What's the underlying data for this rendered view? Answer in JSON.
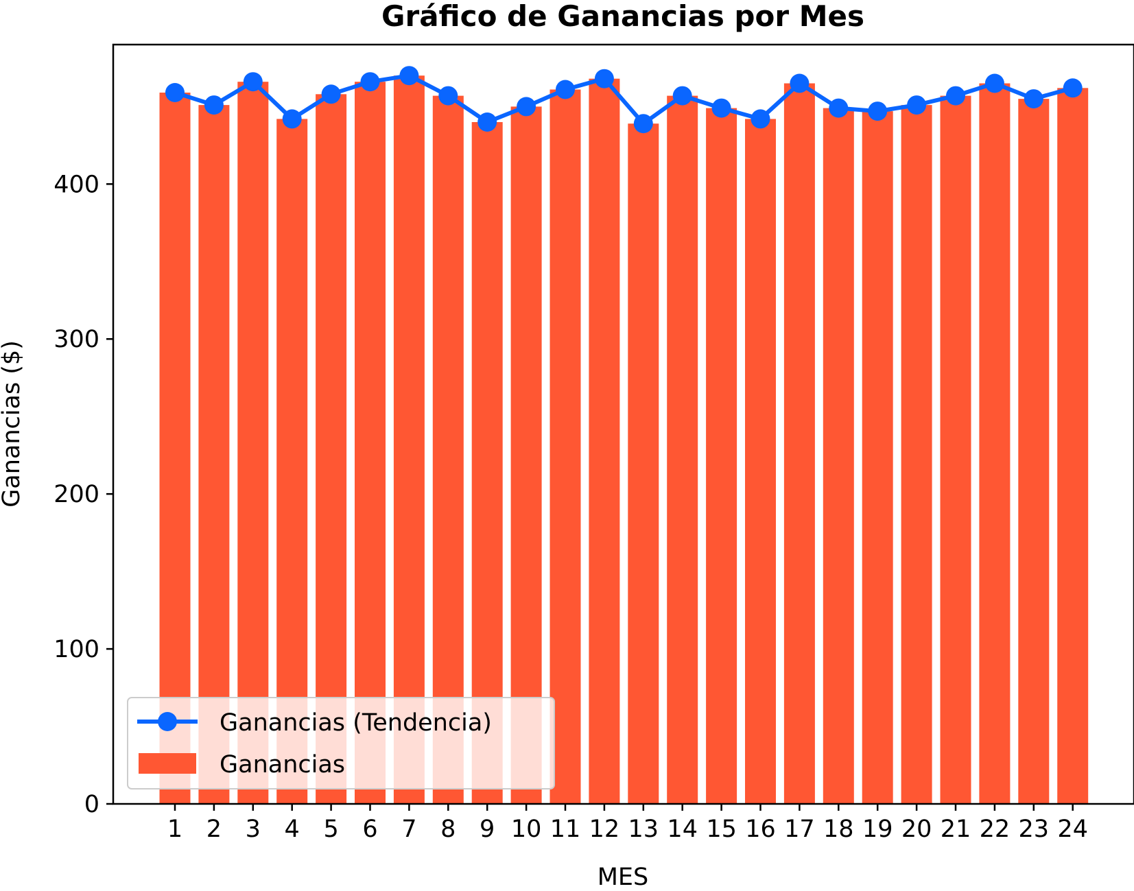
{
  "chart_data": {
    "type": "bar",
    "title": "Gráfico de Ganancias por Mes",
    "xlabel": "MES",
    "ylabel": "Ganancias ($)",
    "categories": [
      "1",
      "2",
      "3",
      "4",
      "5",
      "6",
      "7",
      "8",
      "9",
      "10",
      "11",
      "12",
      "13",
      "14",
      "15",
      "16",
      "17",
      "18",
      "19",
      "20",
      "21",
      "22",
      "23",
      "24"
    ],
    "ylim": [
      0,
      490
    ],
    "yticks": [
      0,
      100,
      200,
      300,
      400
    ],
    "grid": false,
    "legend_position": "lower-left",
    "series": [
      {
        "name": "Ganancias",
        "kind": "bar",
        "color": "#ff5733",
        "values": [
          459,
          451,
          466,
          442,
          458,
          466,
          470,
          457,
          440,
          450,
          461,
          468,
          439,
          457,
          449,
          442,
          465,
          449,
          447,
          451,
          457,
          465,
          455,
          462
        ]
      },
      {
        "name": "Ganancias (Tendencia)",
        "kind": "line",
        "color": "#0a66ff",
        "values": [
          459,
          451,
          466,
          442,
          458,
          466,
          470,
          457,
          440,
          450,
          461,
          468,
          439,
          457,
          449,
          442,
          465,
          449,
          447,
          451,
          457,
          465,
          455,
          462
        ]
      }
    ]
  }
}
